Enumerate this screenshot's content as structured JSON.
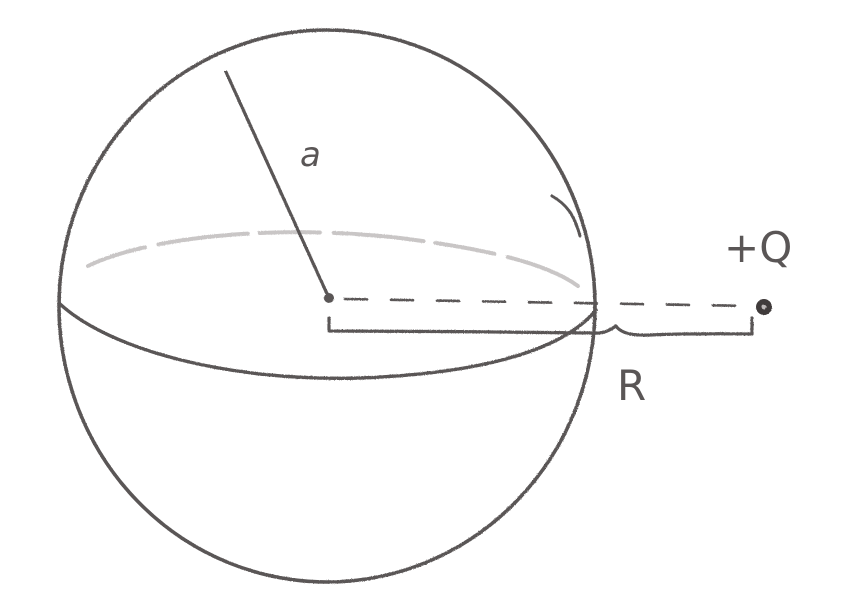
{
  "labels": {
    "radius": "a",
    "distance": "R",
    "charge": "+Q"
  },
  "colors": {
    "ink": "#5a5656",
    "light_ink": "#c9c6c6",
    "background": "#ffffff"
  }
}
